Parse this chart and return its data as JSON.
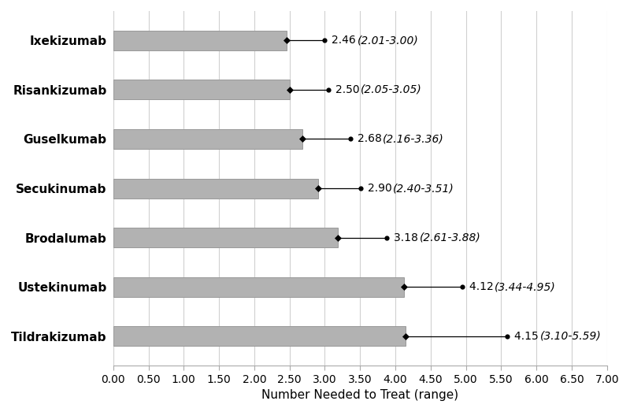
{
  "drugs": [
    "Ixekizumab",
    "Risankizumab",
    "Guselkumab",
    "Secukinumab",
    "Brodalumab",
    "Ustekinumab",
    "Tildrakizumab"
  ],
  "nnt_values": [
    2.46,
    2.5,
    2.68,
    2.9,
    3.18,
    4.12,
    4.15
  ],
  "ci_low": [
    2.01,
    2.05,
    2.16,
    2.4,
    2.61,
    3.44,
    3.1
  ],
  "ci_high": [
    3.0,
    3.05,
    3.36,
    3.51,
    3.88,
    4.95,
    5.59
  ],
  "num_labels": [
    "2.46",
    "2.50",
    "2.68",
    "2.90",
    "3.18",
    "4.12",
    "4.15"
  ],
  "range_labels": [
    "(2.01-3.00)",
    "(2.05-3.05)",
    "(2.16-3.36)",
    "(2.40-3.51)",
    "(2.61-3.88)",
    "(3.44-4.95)",
    "(3.10-5.59)"
  ],
  "bar_color": "#b2b2b2",
  "bar_edge_color": "#999999",
  "xlim": [
    0.0,
    7.0
  ],
  "xticks": [
    0.0,
    0.5,
    1.0,
    1.5,
    2.0,
    2.5,
    3.0,
    3.5,
    4.0,
    4.5,
    5.0,
    5.5,
    6.0,
    6.5,
    7.0
  ],
  "xlabel": "Number Needed to Treat (range)",
  "xlabel_fontsize": 11,
  "tick_fontsize": 10,
  "label_fontsize": 10,
  "ytick_fontsize": 11,
  "bar_height": 0.4,
  "background_color": "#ffffff",
  "grid_color": "#d0d0d0"
}
